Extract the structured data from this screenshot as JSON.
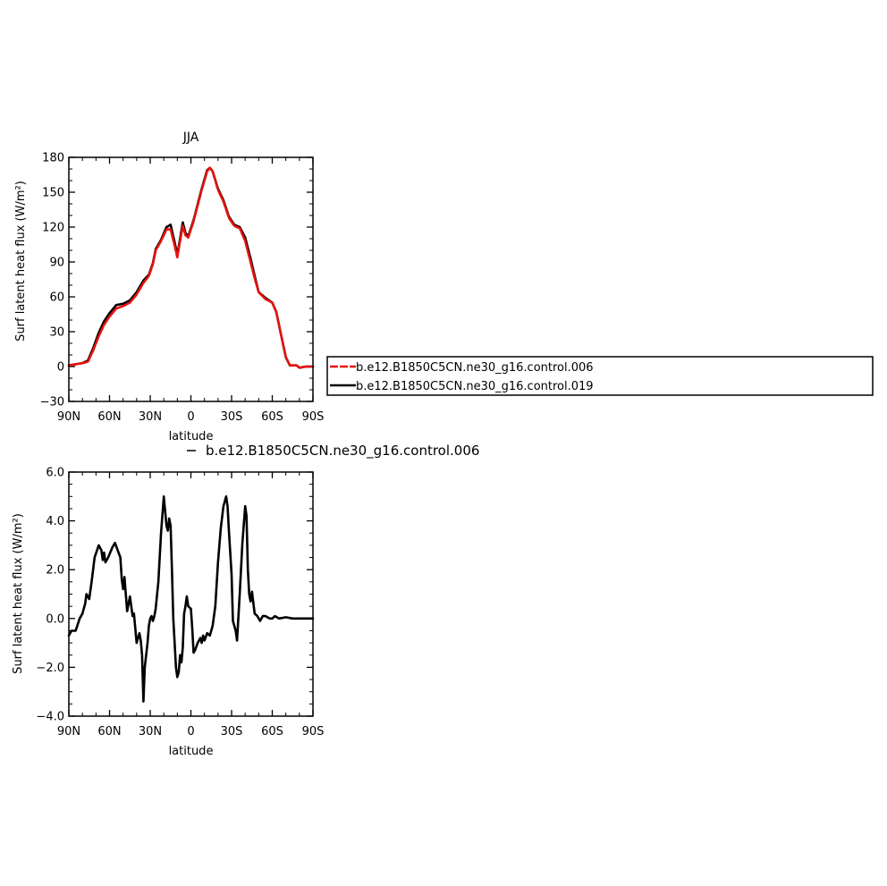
{
  "chart_data": [
    {
      "type": "line",
      "title": "JJA",
      "xlabel": "latitude",
      "ylabel": "Surf latent heat flux (W/m²)",
      "ylim": [
        -30,
        180
      ],
      "yticks": [
        -30,
        0,
        30,
        60,
        90,
        120,
        150,
        180
      ],
      "xlim": [
        90,
        -90
      ],
      "xticks": [
        90,
        60,
        30,
        0,
        -30,
        -60,
        -90
      ],
      "xtick_labels": [
        "90N",
        "60N",
        "30N",
        "0",
        "30S",
        "60S",
        "90S"
      ],
      "legend": "right",
      "series": [
        {
          "name": "b.e12.B1850C5CN.ne30_g16.control.006",
          "color": "#e8120c",
          "dashed": true,
          "points": [
            [
              90,
              1
            ],
            [
              80,
              3
            ],
            [
              76,
              4
            ],
            [
              72,
              14
            ],
            [
              68,
              26
            ],
            [
              64,
              36
            ],
            [
              60,
              43
            ],
            [
              55,
              50
            ],
            [
              50,
              52
            ],
            [
              45,
              55
            ],
            [
              40,
              62
            ],
            [
              35,
              72
            ],
            [
              31,
              78
            ],
            [
              28,
              88
            ],
            [
              26,
              100
            ],
            [
              22,
              108
            ],
            [
              18,
              118
            ],
            [
              15,
              118
            ],
            [
              12,
              104
            ],
            [
              10,
              94
            ],
            [
              8,
              108
            ],
            [
              6,
              121
            ],
            [
              4,
              113
            ],
            [
              2,
              111
            ],
            [
              -2,
              125
            ],
            [
              -8,
              152
            ],
            [
              -12,
              168
            ],
            [
              -14,
              171
            ],
            [
              -16,
              168
            ],
            [
              -20,
              152
            ],
            [
              -24,
              142
            ],
            [
              -28,
              128
            ],
            [
              -32,
              121
            ],
            [
              -36,
              119
            ],
            [
              -40,
              108
            ],
            [
              -44,
              90
            ],
            [
              -47,
              76
            ],
            [
              -50,
              64
            ],
            [
              -55,
              58
            ],
            [
              -60,
              55
            ],
            [
              -63,
              47
            ],
            [
              -66,
              30
            ],
            [
              -70,
              8
            ],
            [
              -73,
              1
            ],
            [
              -78,
              1
            ],
            [
              -80,
              -1
            ],
            [
              -85,
              0
            ],
            [
              -90,
              0
            ]
          ]
        },
        {
          "name": "b.e12.B1850C5CN.ne30_g16.control.019",
          "color": "#000000",
          "dashed": false,
          "points": [
            [
              90,
              1
            ],
            [
              80,
              3
            ],
            [
              76,
              5
            ],
            [
              72,
              16
            ],
            [
              68,
              29
            ],
            [
              64,
              39
            ],
            [
              60,
              46
            ],
            [
              55,
              53
            ],
            [
              50,
              54
            ],
            [
              45,
              57
            ],
            [
              40,
              64
            ],
            [
              35,
              74
            ],
            [
              31,
              79
            ],
            [
              28,
              89
            ],
            [
              26,
              101
            ],
            [
              22,
              109
            ],
            [
              18,
              120
            ],
            [
              15,
              122
            ],
            [
              12,
              107
            ],
            [
              10,
              96
            ],
            [
              8,
              110
            ],
            [
              6,
              124
            ],
            [
              4,
              115
            ],
            [
              2,
              112
            ],
            [
              -2,
              126
            ],
            [
              -8,
              153
            ],
            [
              -12,
              169
            ],
            [
              -14,
              171
            ],
            [
              -16,
              168
            ],
            [
              -20,
              153
            ],
            [
              -24,
              143
            ],
            [
              -28,
              129
            ],
            [
              -32,
              122
            ],
            [
              -36,
              120
            ],
            [
              -40,
              111
            ],
            [
              -44,
              93
            ],
            [
              -47,
              78
            ],
            [
              -50,
              64
            ],
            [
              -55,
              59
            ],
            [
              -60,
              55
            ],
            [
              -63,
              47
            ],
            [
              -66,
              30
            ],
            [
              -70,
              8
            ],
            [
              -73,
              1
            ],
            [
              -78,
              1
            ],
            [
              -80,
              -1
            ],
            [
              -85,
              0
            ],
            [
              -90,
              0
            ]
          ]
        }
      ]
    },
    {
      "type": "line",
      "title": "b.e12.B1850C5CN.ne30_g16.control.006",
      "xlabel": "latitude",
      "ylabel": "Surf latent heat flux (W/m²)",
      "ylim": [
        -4,
        6
      ],
      "yticks": [
        -4,
        -2,
        0,
        2,
        4,
        6
      ],
      "ytick_labels": [
        "-4.0",
        "-2.0",
        "0.0",
        "2.0",
        "4.0",
        "6.0"
      ],
      "xlim": [
        90,
        -90
      ],
      "xticks": [
        90,
        60,
        30,
        0,
        -30,
        -60,
        -90
      ],
      "xtick_labels": [
        "90N",
        "60N",
        "30N",
        "0",
        "30S",
        "60S",
        "90S"
      ],
      "series": [
        {
          "name": "b.e12.B1850C5CN.ne30_g16.control.006",
          "color": "#000000",
          "dashed": false,
          "points": [
            [
              90,
              -0.7
            ],
            [
              88,
              -0.5
            ],
            [
              85,
              -0.5
            ],
            [
              82,
              0
            ],
            [
              80,
              0.2
            ],
            [
              78,
              0.6
            ],
            [
              77,
              1.0
            ],
            [
              75,
              0.8
            ],
            [
              73,
              1.6
            ],
            [
              71,
              2.5
            ],
            [
              68,
              3.0
            ],
            [
              66,
              2.8
            ],
            [
              65,
              2.4
            ],
            [
              64,
              2.7
            ],
            [
              63,
              2.3
            ],
            [
              61,
              2.5
            ],
            [
              58,
              2.9
            ],
            [
              56,
              3.1
            ],
            [
              54,
              2.8
            ],
            [
              52,
              2.5
            ],
            [
              51,
              1.6
            ],
            [
              50,
              1.2
            ],
            [
              49,
              1.7
            ],
            [
              48,
              1.0
            ],
            [
              47,
              0.3
            ],
            [
              45,
              0.9
            ],
            [
              43,
              0.1
            ],
            [
              42,
              0.2
            ],
            [
              40,
              -1.0
            ],
            [
              38,
              -0.6
            ],
            [
              37,
              -0.9
            ],
            [
              36,
              -1.5
            ],
            [
              35,
              -3.4
            ],
            [
              34,
              -2.0
            ],
            [
              32,
              -1.0
            ],
            [
              31,
              -0.3
            ],
            [
              30,
              0.0
            ],
            [
              29,
              0.1
            ],
            [
              28,
              -0.1
            ],
            [
              27,
              0.1
            ],
            [
              26,
              0.4
            ],
            [
              24,
              1.5
            ],
            [
              22,
              3.5
            ],
            [
              20,
              5.0
            ],
            [
              18,
              3.8
            ],
            [
              17,
              3.6
            ],
            [
              16,
              4.1
            ],
            [
              15,
              3.8
            ],
            [
              14,
              2.0
            ],
            [
              13,
              0
            ],
            [
              12,
              -1.0
            ],
            [
              11,
              -2.0
            ],
            [
              10,
              -2.4
            ],
            [
              9,
              -2.2
            ],
            [
              8,
              -1.5
            ],
            [
              7,
              -1.8
            ],
            [
              6,
              -1.2
            ],
            [
              5,
              0.2
            ],
            [
              4,
              0.5
            ],
            [
              3,
              0.9
            ],
            [
              2,
              0.5
            ],
            [
              0,
              0.4
            ],
            [
              -1,
              -0.4
            ],
            [
              -2,
              -1.4
            ],
            [
              -3,
              -1.3
            ],
            [
              -5,
              -1.0
            ],
            [
              -7,
              -0.8
            ],
            [
              -8,
              -1.0
            ],
            [
              -9,
              -0.7
            ],
            [
              -10,
              -0.9
            ],
            [
              -12,
              -0.6
            ],
            [
              -14,
              -0.7
            ],
            [
              -16,
              -0.3
            ],
            [
              -18,
              0.5
            ],
            [
              -20,
              2.3
            ],
            [
              -22,
              3.7
            ],
            [
              -24,
              4.6
            ],
            [
              -26,
              5.0
            ],
            [
              -27,
              4.6
            ],
            [
              -28,
              3.6
            ],
            [
              -30,
              1.8
            ],
            [
              -31,
              -0.1
            ],
            [
              -33,
              -0.5
            ],
            [
              -34,
              -0.9
            ],
            [
              -36,
              1.0
            ],
            [
              -38,
              3.1
            ],
            [
              -40,
              4.6
            ],
            [
              -41,
              4.2
            ],
            [
              -42,
              2.0
            ],
            [
              -43,
              1.0
            ],
            [
              -44,
              0.7
            ],
            [
              -45,
              1.1
            ],
            [
              -47,
              0.2
            ],
            [
              -49,
              0.1
            ],
            [
              -51,
              -0.1
            ],
            [
              -53,
              0.1
            ],
            [
              -55,
              0.1
            ],
            [
              -58,
              0.0
            ],
            [
              -60,
              0.0
            ],
            [
              -62,
              0.1
            ],
            [
              -65,
              0.0
            ],
            [
              -70,
              0.05
            ],
            [
              -75,
              0.0
            ],
            [
              -80,
              0.0
            ],
            [
              -85,
              0.0
            ],
            [
              -90,
              0.0
            ]
          ]
        }
      ]
    }
  ]
}
